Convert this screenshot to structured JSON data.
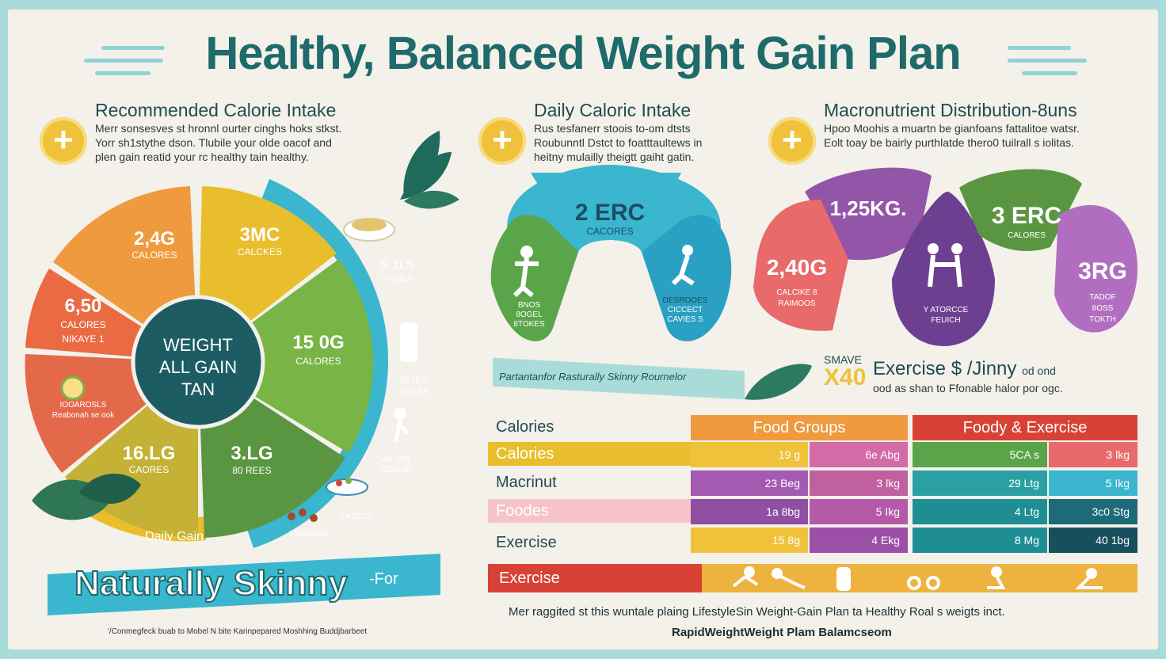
{
  "title": "Healthy, Balanced Weight Gain Plan",
  "sections": [
    {
      "heading": "Recommended Calorie Intake",
      "text": [
        "Merr sonsesves st hronnl ourter cinghs hoks stkst.",
        "Yorr sh1stythe dson. Tlubile your olde oacof and",
        "plen gain reatid your rc healthy tain healthy."
      ]
    },
    {
      "heading": "Daily Caloric Intake",
      "text": [
        "Rus tesfanerr stoois to-om dtsts",
        "Roubunntl Dstct to foatttaultews in",
        "heitny mulailly theigtt gaiht gatin."
      ]
    },
    {
      "heading": "Macronutrient Distribution-8uns",
      "text": [
        "Hpoo Moohis a muartn be gianfoans fattalitoe watsr.",
        "Eolt toay be bairly purthlatde thero0 tuilrall s iolitas."
      ]
    }
  ],
  "pie": {
    "center": [
      "WEIGHT",
      "ALL GAIN",
      "TAN"
    ],
    "segments": [
      {
        "value": "2,4G",
        "label": "CALORES",
        "color": "#ef9a3e"
      },
      {
        "value": "3MC",
        "label": "CALCKES",
        "color": "#e8be2c"
      },
      {
        "value": "15 0G",
        "label": "CALORES",
        "color": "#79b447"
      },
      {
        "value": "3.LG",
        "label": "80 REES",
        "color": "#5a9541"
      },
      {
        "value": "16.LG",
        "label": "CAORES",
        "color": "#c4b135"
      },
      {
        "value": "",
        "label": "",
        "color": "#e4694a"
      },
      {
        "value": "6,50",
        "label": "CALORES",
        "label2": "NIKAYE 1",
        "color": "#ea6a42"
      }
    ],
    "food_label": [
      "IOOAROSLS",
      "Reabonah se ook"
    ],
    "daily_gain": "Daily Gain",
    "ring_labels": [
      {
        "value": "'S 1LS",
        "label": "CAORES"
      },
      {
        "value": "38 IES",
        "label": "CIDCES"
      },
      {
        "value": "2a 1e8",
        "label": "COOKIE"
      },
      {
        "value": "",
        "label": "EKEESS"
      },
      {
        "value": "",
        "label": "EMOKSES"
      }
    ]
  },
  "daily_arch": {
    "center_value": "2 ERC",
    "center_label": "CACORES",
    "left_lines": [
      "BNOS",
      "8OGEL",
      "8TOKES"
    ],
    "right_lines": [
      "DESROOES",
      "CICCECT",
      "CAVIES S"
    ]
  },
  "macro_arch": {
    "top_left_value": "1,25KG.",
    "left_value": "2,40G",
    "left_lines": [
      "CALCIKE 8",
      "RAIMOOS"
    ],
    "top_right_value": "3 ERC",
    "top_right_label": "CALORES",
    "right_value": "3RG",
    "right_lines": [
      "TADOF",
      "8OSS",
      "TOKTH"
    ],
    "center_lines": [
      "Y ATORCCE",
      "FEUICH"
    ]
  },
  "banner_text": "Partantanfor Rasturally Skinny Rournelor",
  "exercise": {
    "badge_top": "SMAVE",
    "badge_big": "X40",
    "heading": "Exercise $ /Jinny",
    "heading_small": "od ond",
    "sub": "ood as shan to Ffonable halor por ogc."
  },
  "table": {
    "row_labels": [
      "Calories",
      "Calories",
      "Macrinut",
      "Foodes",
      "Exercise"
    ],
    "headers": [
      "Food Groups",
      "Foody & Exercise"
    ],
    "rows": [
      [
        "19 g",
        "6e Abg",
        "5CA s",
        "3 lkg"
      ],
      [
        "23 Beg",
        "3 lkg",
        "29 Ltg",
        "5 Ikg"
      ],
      [
        "1a 8bg",
        "5 Ikg",
        "4 Ltg",
        "3c0 Stg"
      ],
      [
        "15 8g",
        "4 Ekg",
        "8 Mg",
        "40 1bg"
      ]
    ],
    "exercise_row": "Exercise"
  },
  "skinny": {
    "text": "Naturally Skinny",
    "small": "-For"
  },
  "footer": {
    "line": "Mer raggited st this wuntale plaing LifestyleSin Weight-Gain Plan ta Healthy Roal s weigts inct.",
    "url": "RapidWeightWeight Plam Balamcseom",
    "small": "'/Conmegfeck buab to Mobel N bite Karinpepared Moshhing Buddjbarbeet"
  },
  "colors": {
    "teal": "#1f6a6b",
    "orange": "#ef9a3e",
    "yellow": "#e8be2c",
    "green": "#79b447",
    "purple": "#9355a8",
    "pink": "#d46aa6",
    "blue": "#3ab6cf",
    "red": "#d84236"
  }
}
